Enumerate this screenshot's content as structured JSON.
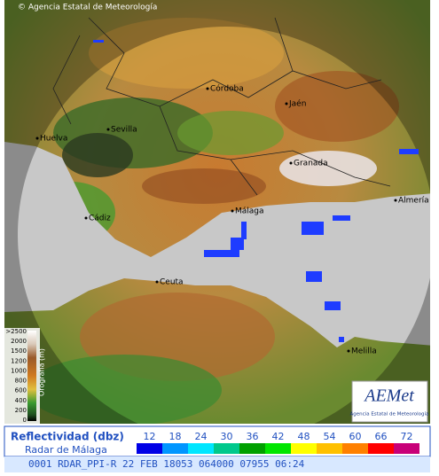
{
  "header": {
    "copyright": "© Agencia Estatal de Meteorología"
  },
  "map": {
    "cities": [
      "Córdoba",
      "Jaén",
      "Sevilla",
      "Huelva",
      "Granada",
      "Málaga",
      "Cádiz",
      "Almería",
      "Ceuta",
      "Melilla"
    ]
  },
  "orography_legend": {
    "title": "Orografía (m)",
    "levels": [
      ">2500",
      "2000",
      "1500",
      "1200",
      "1000",
      "800",
      "600",
      "400",
      "200",
      "0"
    ]
  },
  "logo": {
    "name": "AEMet",
    "caption": "Agencia Estatal de Meteorología"
  },
  "reflectivity_legend": {
    "title": "Reflectividad (dbz)",
    "subtitle": "Radar de Málaga",
    "values": [
      12,
      18,
      24,
      30,
      36,
      42,
      48,
      54,
      60,
      66,
      72
    ],
    "colors": [
      "#0000e6",
      "#0096ff",
      "#00e6ff",
      "#00c88c",
      "#00a000",
      "#00e600",
      "#ffff00",
      "#ffc000",
      "#ff8000",
      "#ff0000",
      "#c80078"
    ]
  },
  "status_bar": {
    "text": "0001 RDAR_PPI-R 22 FEB 18053 064000 07955 06:24"
  }
}
